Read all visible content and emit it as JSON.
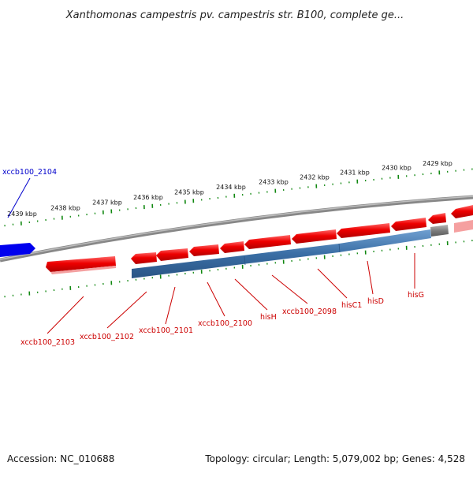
{
  "title": "Xanthomonas campestris pv. campestris str. B100, complete ge...",
  "footer": {
    "accession": "Accession: NC_010688",
    "info": "Topology: circular; Length: 5,079,002 bp; Genes: 4,528"
  },
  "colors": {
    "forward_gene": "#ee0000",
    "reverse_gene": "#3a6ea5",
    "highlight_gene": "#0000ee",
    "backbone": "#8a8a8a",
    "ticks": "#118811",
    "label_forward": "#cc0000",
    "label_blue": "#0000cc"
  },
  "ticks": {
    "major_labels": [
      "2439 kbp",
      "2438 kbp",
      "2437 kbp",
      "2436 kbp",
      "2435 kbp",
      "2434 kbp",
      "2433 kbp",
      "2432 kbp",
      "2431 kbp",
      "2430 kbp",
      "2429 kbp"
    ]
  },
  "genes": {
    "labels": [
      {
        "id": "xccb100_2104",
        "text": "xccb100_2104",
        "color": "blue"
      },
      {
        "id": "xccb100_2103",
        "text": "xccb100_2103",
        "color": "red"
      },
      {
        "id": "xccb100_2102",
        "text": "xccb100_2102",
        "color": "red"
      },
      {
        "id": "xccb100_2101",
        "text": "xccb100_2101",
        "color": "red"
      },
      {
        "id": "xccb100_2100",
        "text": "xccb100_2100",
        "color": "red"
      },
      {
        "id": "hisH",
        "text": "hisH",
        "color": "red"
      },
      {
        "id": "xccb100_2098",
        "text": "xccb100_2098",
        "color": "red"
      },
      {
        "id": "hisC1",
        "text": "hisC1",
        "color": "red"
      },
      {
        "id": "hisD",
        "text": "hisD",
        "color": "red"
      },
      {
        "id": "hisG",
        "text": "hisG",
        "color": "red"
      }
    ]
  }
}
